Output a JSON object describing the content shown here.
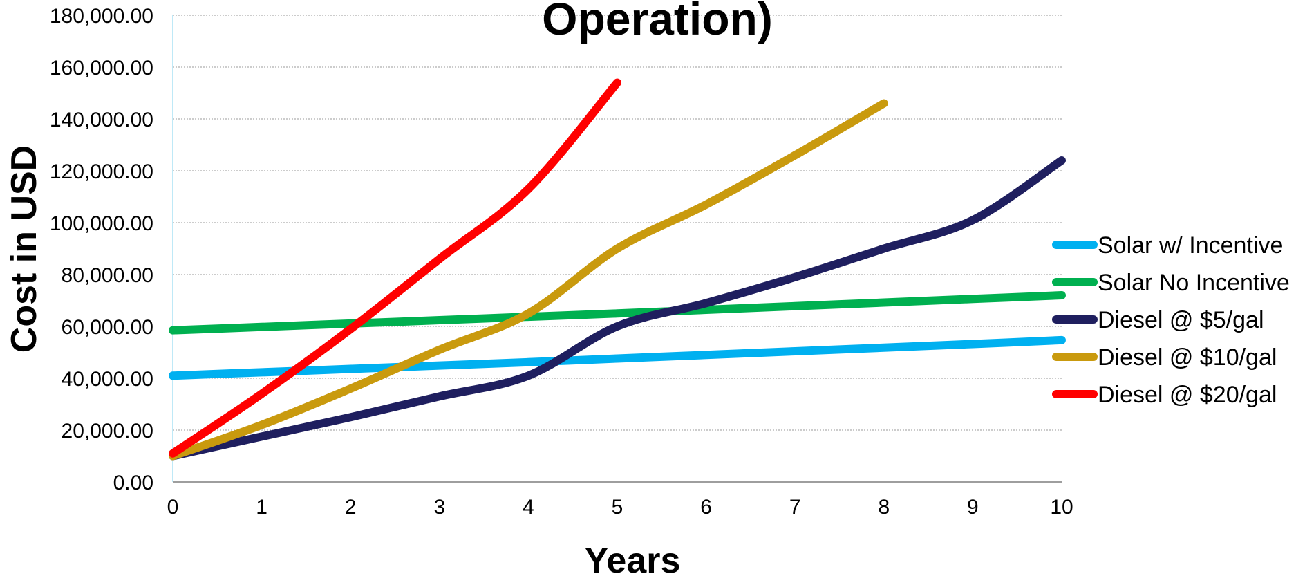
{
  "chart_data": {
    "type": "line",
    "title": "Operation)",
    "xlabel": "Years",
    "ylabel": "Cost in USD",
    "xlim": [
      0,
      10
    ],
    "ylim": [
      0,
      180000
    ],
    "grid": true,
    "legend_position": "right",
    "x_ticks": [
      0,
      1,
      2,
      3,
      4,
      5,
      6,
      7,
      8,
      9,
      10
    ],
    "x_tick_labels": [
      "0",
      "1",
      "2",
      "3",
      "4",
      "5",
      "6",
      "7",
      "8",
      "9",
      "10"
    ],
    "y_ticks": [
      0,
      20000,
      40000,
      60000,
      80000,
      100000,
      120000,
      140000,
      160000,
      180000
    ],
    "y_tick_labels": [
      "0.00",
      "20,000.00",
      "40,000.00",
      "60,000.00",
      "80,000.00",
      "100,000.00",
      "120,000.00",
      "140,000.00",
      "160,000.00",
      "180,000.00"
    ],
    "series": [
      {
        "name": "Solar w/ Incentive",
        "color": "#00B0F0",
        "x": [
          0,
          1,
          2,
          3,
          4,
          5,
          6,
          7,
          8,
          9,
          10
        ],
        "values": [
          41000,
          42300,
          43600,
          44900,
          46200,
          47600,
          49000,
          50400,
          51800,
          53200,
          54700
        ]
      },
      {
        "name": "Solar No Incentive",
        "color": "#00B050",
        "x": [
          0,
          1,
          2,
          3,
          4,
          5,
          6,
          7,
          8,
          9,
          10
        ],
        "values": [
          58500,
          59800,
          61100,
          62400,
          63700,
          65000,
          66400,
          67800,
          69200,
          70600,
          72000
        ]
      },
      {
        "name": "Diesel @ $5/gal",
        "color": "#1F1F5F",
        "x": [
          0,
          1,
          2,
          3,
          4,
          5,
          6,
          7,
          8,
          9,
          10
        ],
        "values": [
          10000,
          17500,
          25000,
          33000,
          41000,
          60000,
          69000,
          79000,
          90000,
          101000,
          124000
        ]
      },
      {
        "name": "Diesel @ $10/gal",
        "color": "#C99A0E",
        "x": [
          0,
          1,
          2,
          3,
          4,
          5,
          6,
          7,
          8
        ],
        "values": [
          10000,
          22000,
          36000,
          51000,
          65000,
          90000,
          107000,
          126000,
          146000
        ]
      },
      {
        "name": "Diesel @ $20/gal",
        "color": "#FF0000",
        "x": [
          0,
          1,
          2,
          3,
          4,
          5
        ],
        "values": [
          11000,
          34000,
          59000,
          86000,
          113000,
          154000
        ]
      }
    ]
  }
}
